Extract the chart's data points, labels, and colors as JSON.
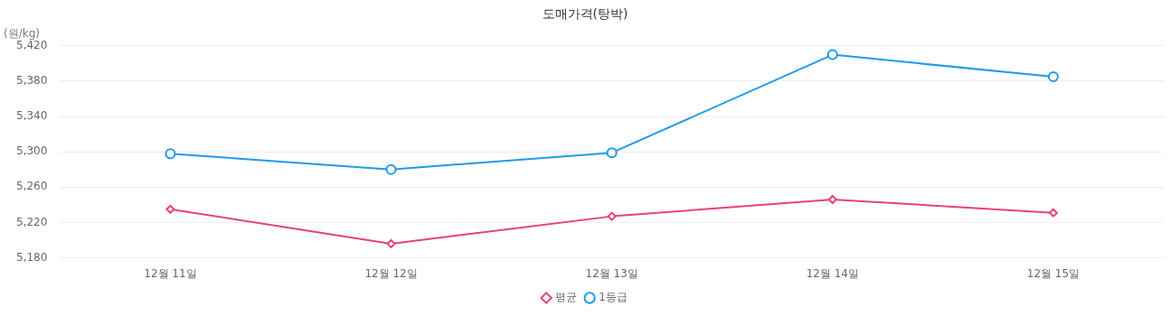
{
  "chart_data": {
    "type": "line",
    "title": "도매가격(탕박)",
    "ylabel": "(원/kg)",
    "categories": [
      "12월 11일",
      "12월 12일",
      "12월 13일",
      "12월 14일",
      "12월 15일"
    ],
    "series": [
      {
        "name": "평균",
        "color": "#e8436b",
        "marker": "diamond",
        "values": [
          5235,
          5196,
          5227,
          5246,
          5231
        ]
      },
      {
        "name": "1등급",
        "color": "#1e9be8",
        "marker": "circle",
        "values": [
          5298,
          5280,
          5299,
          5410,
          5385
        ]
      }
    ],
    "ylim": [
      5180,
      5420
    ],
    "yticks": [
      {
        "value": 5180,
        "label": "5,180"
      },
      {
        "value": 5220,
        "label": "5,220"
      },
      {
        "value": 5260,
        "label": "5,260"
      },
      {
        "value": 5300,
        "label": "5,300"
      },
      {
        "value": 5340,
        "label": "5,340"
      },
      {
        "value": 5380,
        "label": "5,380"
      },
      {
        "value": 5420,
        "label": "5,420"
      }
    ],
    "grid": "y",
    "legend": "bottom",
    "line_style": "solid"
  }
}
